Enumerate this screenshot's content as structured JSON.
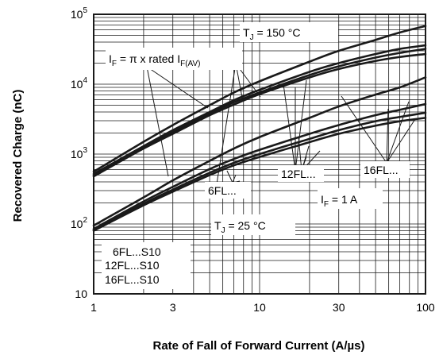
{
  "chart_data": {
    "type": "line",
    "xlabel": "Rate of Fall of Forward Current (A/µs)",
    "ylabel": "Recovered Charge (nC)",
    "x_scale": "log",
    "y_scale": "log",
    "xlim": [
      1,
      100
    ],
    "ylim": [
      10,
      100000
    ],
    "x_ticks": [
      {
        "value": 1,
        "label": "1"
      },
      {
        "value": 3,
        "label": "3"
      },
      {
        "value": 10,
        "label": "10"
      },
      {
        "value": 30,
        "label": "30"
      },
      {
        "value": 100,
        "label": "100"
      }
    ],
    "y_ticks": [
      {
        "value": 10,
        "base": "10",
        "exp": ""
      },
      {
        "value": 100,
        "base": "10",
        "exp": "2"
      },
      {
        "value": 1000,
        "base": "10",
        "exp": "3"
      },
      {
        "value": 10000,
        "base": "10",
        "exp": "4"
      },
      {
        "value": 100000,
        "base": "10",
        "exp": "5"
      }
    ],
    "grid": true,
    "line_color": "#1a1a1a",
    "series": [
      {
        "x": [
          1,
          2,
          3,
          5,
          7,
          10,
          20,
          30,
          50,
          70,
          100
        ],
        "y": [
          560,
          1500,
          2600,
          5000,
          7600,
          11000,
          21000,
          30000,
          43000,
          55000,
          68000
        ]
      },
      {
        "x": [
          1,
          2,
          3,
          5,
          7,
          10,
          20,
          30,
          50,
          70,
          100
        ],
        "y": [
          520,
          1300,
          2200,
          4000,
          5900,
          8300,
          15000,
          20000,
          27000,
          32000,
          36000
        ]
      },
      {
        "x": [
          1,
          2,
          3,
          5,
          7,
          10,
          20,
          30,
          50,
          70,
          100
        ],
        "y": [
          500,
          1250,
          2050,
          3800,
          5500,
          7600,
          13500,
          18000,
          24000,
          28000,
          32000
        ]
      },
      {
        "x": [
          1,
          2,
          3,
          5,
          7,
          10,
          20,
          30,
          50,
          70,
          100
        ],
        "y": [
          480,
          1200,
          1950,
          3600,
          5100,
          7200,
          12500,
          16500,
          21500,
          24500,
          27000
        ]
      },
      {
        "x": [
          1,
          2,
          3,
          5,
          7,
          10,
          20,
          30,
          50,
          70,
          100
        ],
        "y": [
          95,
          240,
          420,
          800,
          1200,
          1750,
          3300,
          4800,
          7100,
          9000,
          12500
        ]
      },
      {
        "x": [
          1,
          2,
          3,
          5,
          7,
          10,
          20,
          30,
          50,
          70,
          100
        ],
        "y": [
          85,
          210,
          340,
          610,
          850,
          1150,
          1950,
          2600,
          3600,
          4300,
          5200
        ]
      },
      {
        "x": [
          1,
          2,
          3,
          5,
          7,
          10,
          20,
          30,
          50,
          70,
          100
        ],
        "y": [
          82,
          195,
          310,
          540,
          750,
          1000,
          1650,
          2200,
          2950,
          3400,
          3900
        ]
      },
      {
        "x": [
          1,
          2,
          3,
          5,
          7,
          10,
          20,
          30,
          50,
          70,
          100
        ],
        "y": [
          80,
          185,
          290,
          500,
          690,
          910,
          1480,
          1950,
          2550,
          2950,
          3300
        ]
      }
    ],
    "annotations": {
      "tj150": {
        "main": "T",
        "sub": "J",
        "rest": " = 150 °C"
      },
      "if_rated": {
        "main": "I",
        "sub": "F",
        "rest": " = π x rated I",
        "sub2": "F(AV)"
      },
      "tj25": {
        "main": "T",
        "sub": "J",
        "rest": " = 25 °C"
      },
      "if1": {
        "main": "I",
        "sub": "F",
        "rest": " = 1 A"
      },
      "label_12fl": "12FL...",
      "label_16fl": "16FL...",
      "label_6fl": "6FL...",
      "legend": [
        "6FL...S10",
        "12FL...S10",
        "16FL...S10"
      ]
    }
  }
}
